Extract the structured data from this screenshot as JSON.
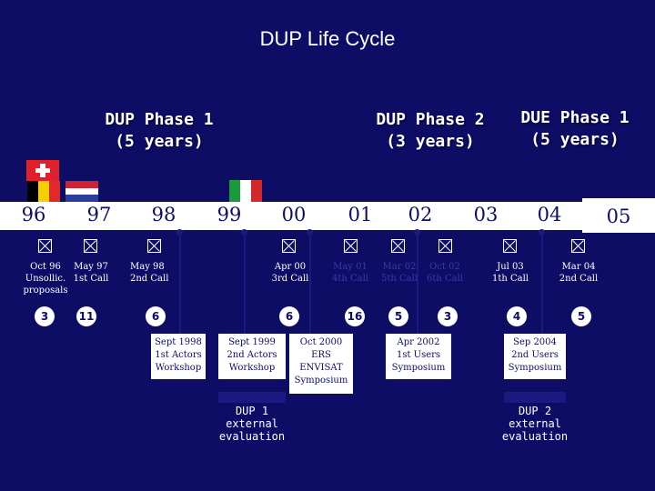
{
  "title": "DUP Life Cycle",
  "phases": {
    "dup1": {
      "name": "DUP Phase 1",
      "duration": "(5 years)"
    },
    "dup2": {
      "name": "DUP Phase 2",
      "duration": "(3 years)"
    },
    "due1": {
      "name": "DUE Phase 1",
      "duration": "(5 years)"
    }
  },
  "flags": [
    "switzerland-flag",
    "belgium-flag",
    "netherlands-flag",
    "italy-flag"
  ],
  "years": [
    "96",
    "97",
    "98",
    "99",
    "00",
    "01",
    "02",
    "03",
    "04",
    "05"
  ],
  "calls": [
    {
      "label": "Oct 96",
      "sub": "Unsollic. proposals",
      "count": "3"
    },
    {
      "label": "May 97",
      "sub": "1st Call",
      "count": "11"
    },
    {
      "label": "May 98",
      "sub": "2nd Call",
      "count": "6"
    },
    {
      "label": "Apr 00",
      "sub": "3rd Call",
      "count": "6"
    },
    {
      "label": "May 01",
      "sub": "4th Call",
      "count": "16"
    },
    {
      "label": "Mar 02",
      "sub": "5th Call",
      "count": "5"
    },
    {
      "label": "Oct 02",
      "sub": "6th Call",
      "count": "3"
    },
    {
      "label": "Jul 03",
      "sub": "1th Call",
      "count": "4"
    },
    {
      "label": "Mar 04",
      "sub": "2nd Call",
      "count": "5"
    }
  ],
  "events": [
    {
      "line1": "Sept 1998",
      "line2": "1st Actors",
      "line3": "Workshop"
    },
    {
      "line1": "Sept 1999",
      "line2": "2nd Actors",
      "line3": "Workshop"
    },
    {
      "line1": "Oct 2000",
      "line2": "ERS",
      "line3": "ENVISAT",
      "line4": "Symposium"
    },
    {
      "line1": "Apr 2002",
      "line2": "1st Users",
      "line3": "Symposium"
    },
    {
      "line1": "Sep 2004",
      "line2": "2nd Users",
      "line3": "Symposium"
    }
  ],
  "evaluations": [
    {
      "line1": "DUP 1",
      "line2": "external",
      "line3": "evaluation"
    },
    {
      "line1": "DUP 2",
      "line2": "external",
      "line3": "evaluation"
    }
  ]
}
